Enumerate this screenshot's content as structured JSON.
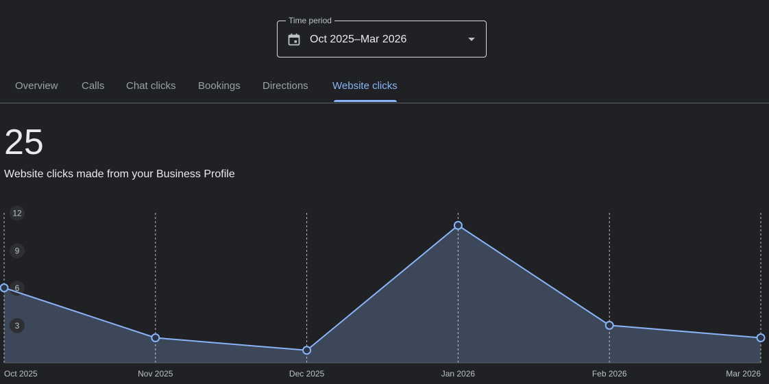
{
  "time_period": {
    "label": "Time period",
    "value": "Oct 2025–Mar 2026",
    "icon": "calendar-icon"
  },
  "tabs": [
    {
      "label": "Overview",
      "active": false
    },
    {
      "label": "Calls",
      "active": false
    },
    {
      "label": "Chat clicks",
      "active": false
    },
    {
      "label": "Bookings",
      "active": false
    },
    {
      "label": "Directions",
      "active": false
    },
    {
      "label": "Website clicks",
      "active": true
    }
  ],
  "metric": {
    "value": "25",
    "description": "Website clicks made from your Business Profile"
  },
  "colors": {
    "accent": "#8ab4f8",
    "area_fill": "#3c4759",
    "background": "#202124"
  },
  "chart_data": {
    "type": "area",
    "categories": [
      "Oct 2025",
      "Nov 2025",
      "Dec 2025",
      "Jan 2026",
      "Feb 2026",
      "Mar 2026"
    ],
    "values": [
      6,
      2,
      1,
      11,
      3,
      2
    ],
    "y_ticks": [
      "3",
      "6",
      "9",
      "12"
    ],
    "ylim": [
      0,
      12
    ],
    "grid": "vertical-dashed"
  }
}
